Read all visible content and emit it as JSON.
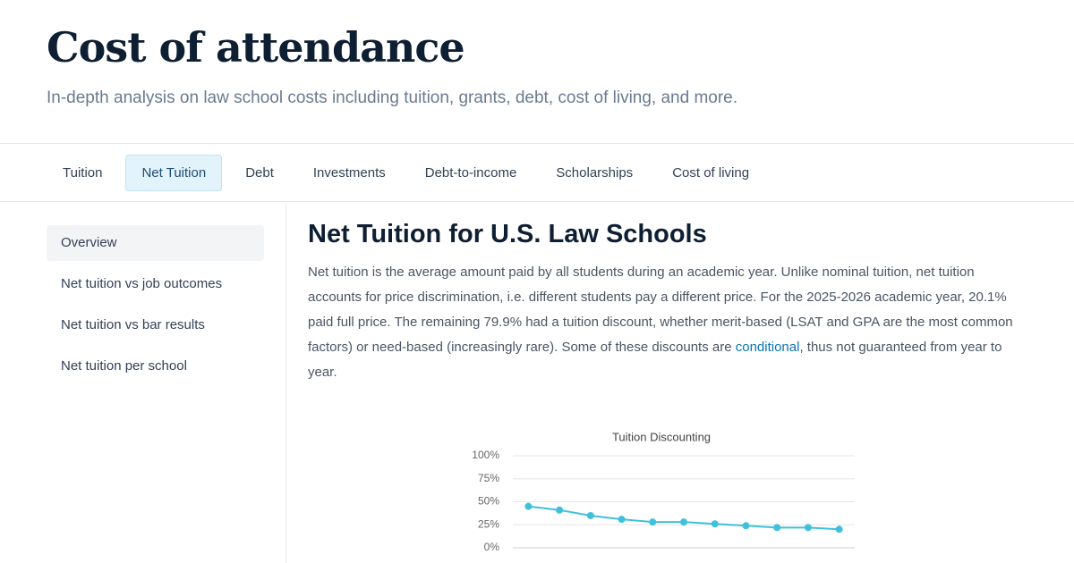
{
  "header": {
    "title": "Cost of attendance",
    "subtitle": "In-depth analysis on law school costs including tuition, grants, debt, cost of living, and more."
  },
  "tabs": [
    "Tuition",
    "Net Tuition",
    "Debt",
    "Investments",
    "Debt-to-income",
    "Scholarships",
    "Cost of living"
  ],
  "sidebar": [
    "Overview",
    "Net tuition vs job outcomes",
    "Net tuition vs bar results",
    "Net tuition per school"
  ],
  "article": {
    "title": "Net Tuition for U.S. Law Schools",
    "text_before": "Net tuition is the average amount paid by all students during an academic year. Unlike nominal tuition, net tuition accounts for price discrimination, i.e. different students pay a different price. For the 2025-2026 academic year, 20.1% paid full price. The remaining 79.9% had a tuition discount, whether merit-based (LSAT and GPA are the most common factors) or need-based (increasingly rare). Some of these discounts are ",
    "link": "conditional",
    "text_after": ", thus not guaranteed from year to year."
  },
  "chart_data": {
    "type": "line",
    "title": "Tuition Discounting",
    "categories": [
      null,
      null,
      null,
      null,
      null,
      null,
      null,
      null,
      null,
      null,
      null
    ],
    "values": [
      45,
      41,
      35,
      31,
      28,
      28,
      26,
      24,
      22,
      22,
      20.1
    ],
    "color": "#40c0db",
    "ylim": [
      0,
      100
    ],
    "yticks": [
      {
        "value": 0,
        "label": "0%"
      },
      {
        "value": 25,
        "label": "25%"
      },
      {
        "value": 50,
        "label": "50%"
      },
      {
        "value": 75,
        "label": "75%"
      },
      {
        "value": 100,
        "label": "100%"
      }
    ],
    "grid": true
  }
}
